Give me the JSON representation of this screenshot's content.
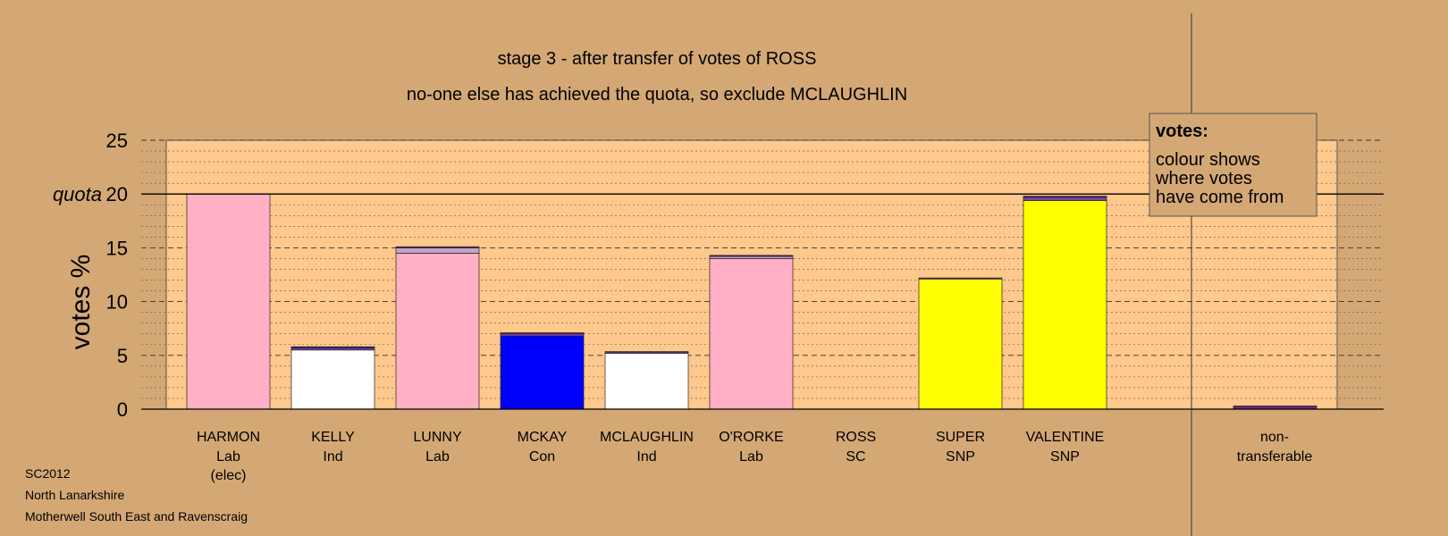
{
  "chart_data": {
    "type": "bar",
    "title": "stage 3 - after transfer of votes of ROSS",
    "subtitle": "no-one else has achieved the quota, so exclude MCLAUGHLIN",
    "ylabel": "votes %",
    "ylim": [
      0,
      25
    ],
    "yticks": [
      0,
      5,
      10,
      15,
      20,
      25
    ],
    "quota_label": "quota",
    "quota_value": 20,
    "grid": true,
    "categories": [
      {
        "name": "HARMON",
        "party": "Lab",
        "note": "(elec)"
      },
      {
        "name": "KELLY",
        "party": "Ind",
        "note": ""
      },
      {
        "name": "LUNNY",
        "party": "Lab",
        "note": ""
      },
      {
        "name": "MCKAY",
        "party": "Con",
        "note": ""
      },
      {
        "name": "MCLAUGHLIN",
        "party": "Ind",
        "note": ""
      },
      {
        "name": "O'RORKE",
        "party": "Lab",
        "note": ""
      },
      {
        "name": "ROSS",
        "party": "SC",
        "note": ""
      },
      {
        "name": "SUPER",
        "party": "SNP",
        "note": ""
      },
      {
        "name": "VALENTINE",
        "party": "SNP",
        "note": ""
      }
    ],
    "bars": [
      [
        {
          "value": 20.0,
          "color": "#ffb0c4"
        }
      ],
      [
        {
          "value": 5.5,
          "color": "#ffffff"
        },
        {
          "value": 0.2,
          "color": "#7b3fb5"
        },
        {
          "value": 0.1,
          "color": "#1a1a99"
        }
      ],
      [
        {
          "value": 14.5,
          "color": "#ffb0c4"
        },
        {
          "value": 0.5,
          "color": "#c8a0c8"
        },
        {
          "value": 0.1,
          "color": "#5a2a6a"
        }
      ],
      [
        {
          "value": 6.8,
          "color": "#0000ff"
        },
        {
          "value": 0.2,
          "color": "#7b3fb5"
        },
        {
          "value": 0.1,
          "color": "#5a2a6a"
        }
      ],
      [
        {
          "value": 5.2,
          "color": "#ffffff"
        },
        {
          "value": 0.15,
          "color": "#5a2a6a"
        }
      ],
      [
        {
          "value": 14.0,
          "color": "#ffb0c4"
        },
        {
          "value": 0.2,
          "color": "#c8a0c8"
        },
        {
          "value": 0.1,
          "color": "#5a2a6a"
        }
      ],
      [],
      [
        {
          "value": 12.1,
          "color": "#ffff00"
        },
        {
          "value": 0.1,
          "color": "#5a2a6a"
        }
      ],
      [
        {
          "value": 19.4,
          "color": "#ffff00"
        },
        {
          "value": 0.3,
          "color": "#7b3fb5"
        },
        {
          "value": 0.1,
          "color": "#5a2a6a"
        }
      ]
    ],
    "nontransferable": {
      "label_line1": "non-",
      "label_line2": "transferable",
      "value": 0.3,
      "color": "#6a2a7a"
    },
    "legend": {
      "title": "votes:",
      "lines": [
        "colour shows",
        "where votes",
        "have come from"
      ],
      "position": "top-right"
    },
    "colors": {
      "background": "#d4a875",
      "plot_area": "#ffc88c",
      "Lab": "#ffb0c4",
      "Ind": "#ffffff",
      "Con": "#0000ff",
      "SNP": "#ffff00"
    }
  },
  "footer": {
    "line1": "SC2012",
    "line2": "North Lanarkshire",
    "line3": "Motherwell South East and Ravenscraig"
  }
}
